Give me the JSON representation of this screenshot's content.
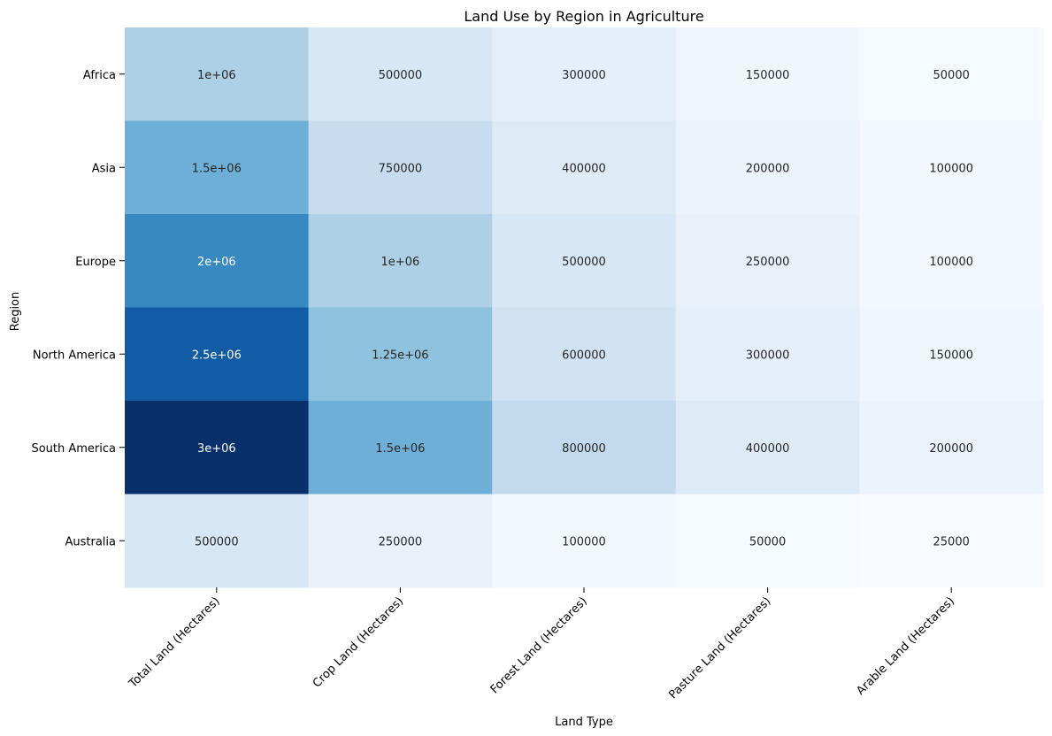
{
  "chart_data": {
    "type": "heatmap",
    "title": "Land Use by Region in Agriculture",
    "xlabel": "Land Type",
    "ylabel": "Region",
    "x_categories": [
      "Total Land (Hectares)",
      "Crop Land (Hectares)",
      "Forest Land (Hectares)",
      "Pasture Land (Hectares)",
      "Arable Land (Hectares)"
    ],
    "y_categories": [
      "Africa",
      "Asia",
      "Europe",
      "North America",
      "South America",
      "Australia"
    ],
    "values": [
      [
        1000000,
        500000,
        300000,
        150000,
        50000
      ],
      [
        1500000,
        750000,
        400000,
        200000,
        100000
      ],
      [
        2000000,
        1000000,
        500000,
        250000,
        100000
      ],
      [
        2500000,
        1250000,
        600000,
        300000,
        150000
      ],
      [
        3000000,
        1500000,
        800000,
        400000,
        200000
      ],
      [
        500000,
        250000,
        100000,
        50000,
        25000
      ]
    ],
    "cell_labels": [
      [
        "1e+06",
        "500000",
        "300000",
        "150000",
        "50000"
      ],
      [
        "1.5e+06",
        "750000",
        "400000",
        "200000",
        "100000"
      ],
      [
        "2e+06",
        "1e+06",
        "500000",
        "250000",
        "100000"
      ],
      [
        "2.5e+06",
        "1.25e+06",
        "600000",
        "300000",
        "150000"
      ],
      [
        "3e+06",
        "1.5e+06",
        "800000",
        "400000",
        "200000"
      ],
      [
        "500000",
        "250000",
        "100000",
        "50000",
        "25000"
      ]
    ],
    "colormap": "Blues",
    "color_range": [
      25000,
      3000000
    ],
    "colorbar": false,
    "grid": false
  }
}
